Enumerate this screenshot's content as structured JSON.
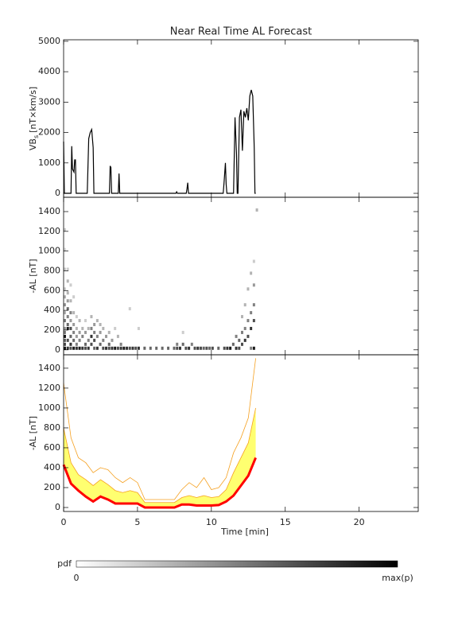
{
  "chart_data": [
    {
      "type": "line",
      "title": "Near Real Time AL Forecast",
      "ylabel": "VB",
      "ylabel_sub": "s",
      "ylabel_unit": "[nT×km/s]",
      "xlim": [
        0,
        24
      ],
      "xticks": [
        0,
        5,
        10,
        15,
        20
      ],
      "xtick_labels": false,
      "ylim": [
        -130,
        5050
      ],
      "yticks": [
        0,
        1000,
        2000,
        3000,
        4000,
        5000
      ],
      "x": [
        0,
        0.05,
        0.5,
        0.55,
        0.6,
        0.7,
        0.75,
        0.8,
        0.85,
        1.6,
        1.7,
        1.8,
        1.9,
        2.0,
        2.05,
        3.1,
        3.15,
        3.2,
        3.25,
        3.7,
        3.75,
        3.8,
        7.6,
        7.65,
        7.7,
        8.3,
        8.35,
        8.4,
        8.45,
        10.8,
        10.85,
        10.95,
        11.0,
        11.05,
        11.5,
        11.6,
        11.7,
        11.75,
        11.8,
        11.9,
        12.0,
        12.1,
        12.2,
        12.3,
        12.4,
        12.5,
        12.6,
        12.7,
        12.8,
        12.9,
        12.95,
        13.0
      ],
      "series": [
        {
          "color": "#000000",
          "width": 1.2,
          "values": [
            1700,
            0,
            0,
            1550,
            800,
            700,
            1100,
            1100,
            0,
            0,
            1800,
            2000,
            2100,
            1500,
            0,
            0,
            900,
            850,
            0,
            0,
            650,
            0,
            0,
            50,
            0,
            0,
            150,
            350,
            0,
            0,
            300,
            1000,
            300,
            0,
            0,
            2500,
            1300,
            0,
            0,
            2500,
            2750,
            1400,
            2700,
            2500,
            2800,
            2400,
            3200,
            3400,
            3200,
            1500,
            0,
            0
          ]
        }
      ]
    },
    {
      "type": "heatmap",
      "ylabel": "-AL [nT]",
      "xlim": [
        0,
        24
      ],
      "xticks": [
        0,
        5,
        10,
        15,
        20
      ],
      "xtick_labels": false,
      "ylim": [
        -50,
        1545
      ],
      "yticks": [
        0,
        200,
        400,
        600,
        800,
        1000,
        1200,
        1400
      ],
      "cells": [
        [
          0,
          0,
          0.9
        ],
        [
          0,
          40,
          0.7
        ],
        [
          0,
          80,
          0.6
        ],
        [
          0,
          120,
          0.9
        ],
        [
          0,
          160,
          0.5
        ],
        [
          0,
          200,
          0.4
        ],
        [
          0,
          280,
          0.5
        ],
        [
          0,
          360,
          0.3
        ],
        [
          0,
          440,
          0.4
        ],
        [
          0,
          520,
          0.3
        ],
        [
          0,
          600,
          0.2
        ],
        [
          0,
          800,
          0.2
        ],
        [
          0,
          1000,
          0.15
        ],
        [
          0,
          1200,
          0.2
        ],
        [
          0.2,
          0,
          0.8
        ],
        [
          0.2,
          80,
          0.7
        ],
        [
          0.2,
          200,
          0.9
        ],
        [
          0.2,
          240,
          0.6
        ],
        [
          0.2,
          320,
          0.5
        ],
        [
          0.2,
          400,
          0.6
        ],
        [
          0.2,
          480,
          0.4
        ],
        [
          0.2,
          560,
          0.3
        ],
        [
          0.2,
          680,
          0.3
        ],
        [
          0.2,
          800,
          0.2
        ],
        [
          0.4,
          0,
          0.7
        ],
        [
          0.4,
          40,
          0.8
        ],
        [
          0.4,
          120,
          0.6
        ],
        [
          0.4,
          200,
          0.7
        ],
        [
          0.4,
          280,
          0.4
        ],
        [
          0.4,
          360,
          0.5
        ],
        [
          0.4,
          480,
          0.3
        ],
        [
          0.4,
          640,
          0.2
        ],
        [
          0.6,
          0,
          0.9
        ],
        [
          0.6,
          80,
          0.6
        ],
        [
          0.6,
          160,
          0.5
        ],
        [
          0.6,
          240,
          0.4
        ],
        [
          0.6,
          360,
          0.3
        ],
        [
          0.6,
          520,
          0.2
        ],
        [
          0.8,
          0,
          0.8
        ],
        [
          0.8,
          40,
          0.5
        ],
        [
          0.8,
          120,
          0.4
        ],
        [
          0.8,
          200,
          0.3
        ],
        [
          0.8,
          320,
          0.2
        ],
        [
          1.0,
          0,
          0.9
        ],
        [
          1.0,
          80,
          0.5
        ],
        [
          1.0,
          160,
          0.4
        ],
        [
          1.0,
          280,
          0.3
        ],
        [
          1.2,
          0,
          0.8
        ],
        [
          1.2,
          120,
          0.5
        ],
        [
          1.2,
          200,
          0.3
        ],
        [
          1.4,
          0,
          0.7
        ],
        [
          1.4,
          40,
          0.6
        ],
        [
          1.4,
          160,
          0.4
        ],
        [
          1.4,
          280,
          0.2
        ],
        [
          1.6,
          0,
          0.8
        ],
        [
          1.6,
          80,
          0.5
        ],
        [
          1.6,
          200,
          0.3
        ],
        [
          1.8,
          40,
          0.7
        ],
        [
          1.8,
          120,
          0.8
        ],
        [
          1.8,
          200,
          0.5
        ],
        [
          1.8,
          320,
          0.3
        ],
        [
          2.0,
          0,
          0.6
        ],
        [
          2.0,
          80,
          0.7
        ],
        [
          2.0,
          160,
          0.5
        ],
        [
          2.0,
          240,
          0.4
        ],
        [
          2.2,
          0,
          0.8
        ],
        [
          2.2,
          120,
          0.5
        ],
        [
          2.2,
          280,
          0.3
        ],
        [
          2.4,
          40,
          0.6
        ],
        [
          2.4,
          160,
          0.4
        ],
        [
          2.4,
          240,
          0.3
        ],
        [
          2.6,
          0,
          0.7
        ],
        [
          2.6,
          80,
          0.5
        ],
        [
          2.6,
          200,
          0.3
        ],
        [
          2.8,
          0,
          0.8
        ],
        [
          2.8,
          120,
          0.4
        ],
        [
          3.0,
          0,
          0.7
        ],
        [
          3.0,
          40,
          0.6
        ],
        [
          3.0,
          160,
          0.3
        ],
        [
          3.2,
          0,
          0.8
        ],
        [
          3.2,
          80,
          0.4
        ],
        [
          3.4,
          0,
          0.9
        ],
        [
          3.4,
          200,
          0.2
        ],
        [
          3.6,
          0,
          0.7
        ],
        [
          3.6,
          120,
          0.3
        ],
        [
          3.8,
          0,
          0.8
        ],
        [
          3.8,
          40,
          0.5
        ],
        [
          4.0,
          0,
          0.9
        ],
        [
          4.2,
          0,
          0.8
        ],
        [
          4.4,
          0,
          0.7
        ],
        [
          4.4,
          400,
          0.2
        ],
        [
          4.6,
          0,
          0.8
        ],
        [
          4.8,
          0,
          0.7
        ],
        [
          5.0,
          0,
          0.8
        ],
        [
          5.0,
          200,
          0.2
        ],
        [
          5.4,
          0,
          0.6
        ],
        [
          5.8,
          0,
          0.6
        ],
        [
          6.2,
          0,
          0.6
        ],
        [
          6.6,
          0,
          0.6
        ],
        [
          7.0,
          0,
          0.6
        ],
        [
          7.4,
          0,
          0.6
        ],
        [
          7.6,
          0,
          0.7
        ],
        [
          7.6,
          40,
          0.5
        ],
        [
          7.8,
          0,
          0.8
        ],
        [
          8.0,
          40,
          0.6
        ],
        [
          8.0,
          160,
          0.2
        ],
        [
          8.2,
          0,
          0.7
        ],
        [
          8.4,
          0,
          0.8
        ],
        [
          8.6,
          40,
          0.5
        ],
        [
          8.8,
          0,
          0.7
        ],
        [
          9.0,
          0,
          0.8
        ],
        [
          9.2,
          0,
          0.7
        ],
        [
          9.4,
          0,
          0.6
        ],
        [
          9.6,
          0,
          0.7
        ],
        [
          9.8,
          0,
          0.6
        ],
        [
          10.0,
          0,
          0.7
        ],
        [
          10.4,
          0,
          0.6
        ],
        [
          10.8,
          0,
          0.7
        ],
        [
          11.0,
          0,
          0.8
        ],
        [
          11.2,
          0,
          0.9
        ],
        [
          11.4,
          40,
          0.6
        ],
        [
          11.6,
          0,
          0.8
        ],
        [
          11.6,
          120,
          0.5
        ],
        [
          11.8,
          0,
          0.7
        ],
        [
          11.8,
          80,
          0.6
        ],
        [
          12.0,
          40,
          0.7
        ],
        [
          12.0,
          160,
          0.5
        ],
        [
          12.0,
          320,
          0.3
        ],
        [
          12.2,
          80,
          0.8
        ],
        [
          12.2,
          200,
          0.5
        ],
        [
          12.2,
          440,
          0.3
        ],
        [
          12.4,
          120,
          0.7
        ],
        [
          12.4,
          280,
          0.5
        ],
        [
          12.4,
          600,
          0.3
        ],
        [
          12.6,
          0,
          0.5
        ],
        [
          12.6,
          200,
          0.8
        ],
        [
          12.6,
          360,
          0.5
        ],
        [
          12.6,
          760,
          0.3
        ],
        [
          12.8,
          0,
          0.9
        ],
        [
          12.8,
          280,
          0.7
        ],
        [
          12.8,
          440,
          0.5
        ],
        [
          12.8,
          640,
          0.4
        ],
        [
          12.8,
          880,
          0.2
        ],
        [
          13.0,
          1400,
          0.3
        ]
      ],
      "colorbar": {
        "label": "pdf",
        "min_label": "0",
        "max_label": "max(p)"
      }
    },
    {
      "type": "line",
      "ylabel": "-AL [nT]",
      "xlabel": "Time [min]",
      "xlim": [
        0,
        24
      ],
      "xticks": [
        0,
        5,
        10,
        15,
        20
      ],
      "xtick_labels": true,
      "ylim": [
        -40,
        1535
      ],
      "yticks": [
        0,
        200,
        400,
        600,
        800,
        1000,
        1200,
        1400
      ],
      "x": [
        0,
        0.5,
        1,
        1.5,
        2,
        2.5,
        3,
        3.5,
        4,
        4.5,
        5,
        5.5,
        6,
        6.5,
        7,
        7.5,
        8,
        8.5,
        9,
        9.5,
        10,
        10.5,
        11,
        11.5,
        12,
        12.5,
        13
      ],
      "fill": {
        "color": "#ffff70",
        "from": 2,
        "to": 1
      },
      "series": [
        {
          "color": "#f5a020",
          "width": 0.8,
          "values": [
            1250,
            700,
            500,
            450,
            350,
            400,
            380,
            300,
            250,
            300,
            250,
            80,
            80,
            80,
            80,
            80,
            180,
            250,
            200,
            300,
            180,
            200,
            300,
            550,
            700,
            900,
            1500
          ]
        },
        {
          "color": "#f5a020",
          "width": 0.8,
          "values": [
            800,
            450,
            330,
            280,
            220,
            280,
            230,
            170,
            150,
            170,
            150,
            50,
            50,
            50,
            50,
            50,
            100,
            120,
            100,
            120,
            100,
            110,
            180,
            350,
            500,
            650,
            1000
          ]
        },
        {
          "color": "#ff0000",
          "width": 3,
          "values": [
            430,
            240,
            170,
            110,
            60,
            110,
            80,
            40,
            40,
            40,
            40,
            0,
            0,
            0,
            0,
            0,
            30,
            30,
            20,
            20,
            20,
            25,
            60,
            120,
            220,
            320,
            500
          ]
        }
      ]
    }
  ]
}
